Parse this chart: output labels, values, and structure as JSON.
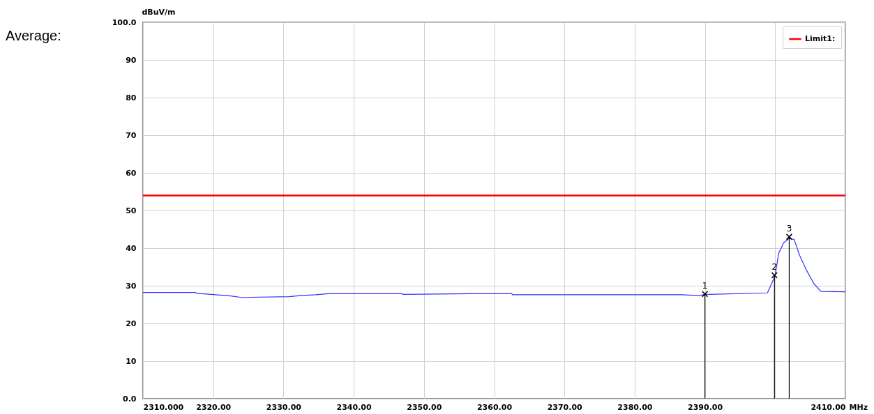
{
  "chart_data": {
    "type": "line",
    "title": "Average:",
    "ylabel": "dBuV/m",
    "xlabel": "MHz",
    "xlim": [
      2310,
      2410
    ],
    "xticks": [
      {
        "value": 2310,
        "label": "2310.000"
      },
      {
        "value": 2320,
        "label": "2320.00"
      },
      {
        "value": 2330,
        "label": "2330.00"
      },
      {
        "value": 2340,
        "label": "2340.00"
      },
      {
        "value": 2350,
        "label": "2350.00"
      },
      {
        "value": 2360,
        "label": "2360.00"
      },
      {
        "value": 2370,
        "label": "2370.00"
      },
      {
        "value": 2380,
        "label": "2380.00"
      },
      {
        "value": 2390,
        "label": "2390.00"
      },
      {
        "value": 2400,
        "label": null
      },
      {
        "value": 2410,
        "label": "2410.00"
      }
    ],
    "ylim": [
      0,
      100
    ],
    "yticks": [
      {
        "value": 0,
        "label": "0.0"
      },
      10,
      20,
      30,
      40,
      50,
      60,
      70,
      80,
      90,
      {
        "value": 100,
        "label": "100.0"
      }
    ],
    "grid": true,
    "legend": "top right",
    "series": [
      {
        "color": "#3030ff",
        "x": [
          2310,
          2317.5,
          2317.6,
          2319.7,
          2322.5,
          2324,
          2330.8,
          2332.4,
          2334.6,
          2336.4,
          2346.9,
          2347,
          2356.7,
          2362.5,
          2362.6,
          2386.7,
          2389.2,
          2390,
          2398.9,
          2399.5,
          2400,
          2400.5,
          2401.2,
          2402,
          2402.7,
          2403.5,
          2404.5,
          2405.5,
          2406.5,
          2409.8,
          2410
        ],
        "values": [
          28.2,
          28.2,
          28,
          27.7,
          27.3,
          26.9,
          27.1,
          27.4,
          27.6,
          27.9,
          27.9,
          27.7,
          27.9,
          27.9,
          27.6,
          27.6,
          27.4,
          27.7,
          28.1,
          30.6,
          32.8,
          38.6,
          41.4,
          42.6,
          42.3,
          38,
          34,
          30.6,
          28.5,
          28.4,
          28.4
        ]
      }
    ],
    "ref_lines": [
      {
        "axis": "y",
        "value": 54,
        "label": "Limit1:",
        "color": "#ff0000"
      }
    ],
    "annotations": [
      {
        "text": "1",
        "x": 2390,
        "y": 27.8
      },
      {
        "text": "2",
        "x": 2399.9,
        "y": 32.8
      },
      {
        "text": "3",
        "x": 2402,
        "y": 43
      }
    ]
  }
}
